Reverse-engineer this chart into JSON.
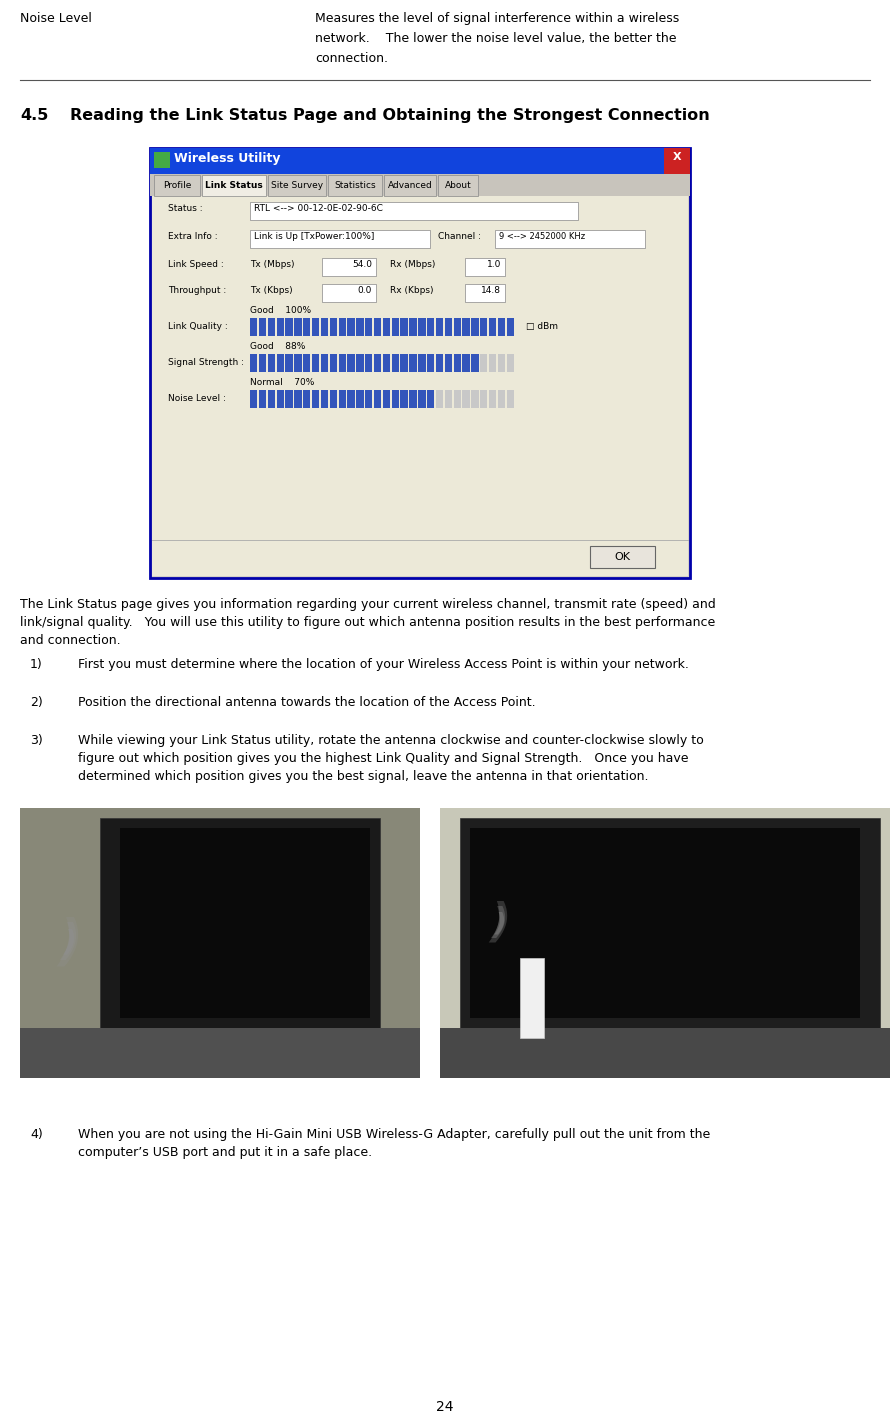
{
  "page_number": "24",
  "bg_color": "#ffffff",
  "text_color": "#000000",
  "row1_label": "Noise Level",
  "row1_text_line1": "Measures the level of signal interference within a wireless",
  "row1_text_line2": "network.    The lower the noise level value, the better the",
  "row1_text_line3": "connection.",
  "section_num": "4.5",
  "section_title": "Reading the Link Status Page and Obtaining the Strongest Connection",
  "intro_line1": "The Link Status page gives you information regarding your current wireless channel, transmit rate (speed) and",
  "intro_line2": "link/signal quality.   You will use this utility to figure out which antenna position results in the best performance",
  "intro_line3": "and connection.",
  "item1_num": "1)",
  "item1_text": "First you must determine where the location of your Wireless Access Point is within your network.",
  "item2_num": "2)",
  "item2_text": "Position the directional antenna towards the location of the Access Point.",
  "item3_num": "3)",
  "item3_line1": "While viewing your Link Status utility, rotate the antenna clockwise and counter-clockwise slowly to",
  "item3_line2": "figure out which position gives you the highest Link Quality and Signal Strength.   Once you have",
  "item3_line3": "determined which position gives you the best signal, leave the antenna in that orientation.",
  "item4_num": "4)",
  "item4_line1": "When you are not using the Hi-Gain Mini USB Wireless-G Adapter, carefully pull out the unit from the",
  "item4_line2": "computer’s USB port and put it in a safe place.",
  "wu_title": "Wireless Utility",
  "wu_tabs": [
    "Profile",
    "Link Status",
    "Site Survey",
    "Statistics",
    "Advanced",
    "About"
  ],
  "wu_active_tab": "Link Status",
  "wu_status_val": "RTL <--> 00-12-0E-02-90-6C",
  "wu_extra_info_val": "Link is Up [TxPower:100%]",
  "wu_channel_val": "9 <--> 2452000 KHz",
  "wu_link_speed_tx": "54.0",
  "wu_link_speed_rx": "1.0",
  "wu_throughput_tx": "0.0",
  "wu_throughput_rx": "14.8",
  "wu_lq_pct": 1.0,
  "wu_ss_pct": 0.88,
  "wu_nl_pct": 0.7,
  "wu_bar_color": "#3355bb",
  "wu_title_bar_color": "#1144dd",
  "wu_window_bg": "#d4d0c8",
  "wu_content_bg": "#ece9d8",
  "wu_border_color": "#0000aa",
  "photo_left_bg": "#606060",
  "photo_right_bg": "#888888"
}
